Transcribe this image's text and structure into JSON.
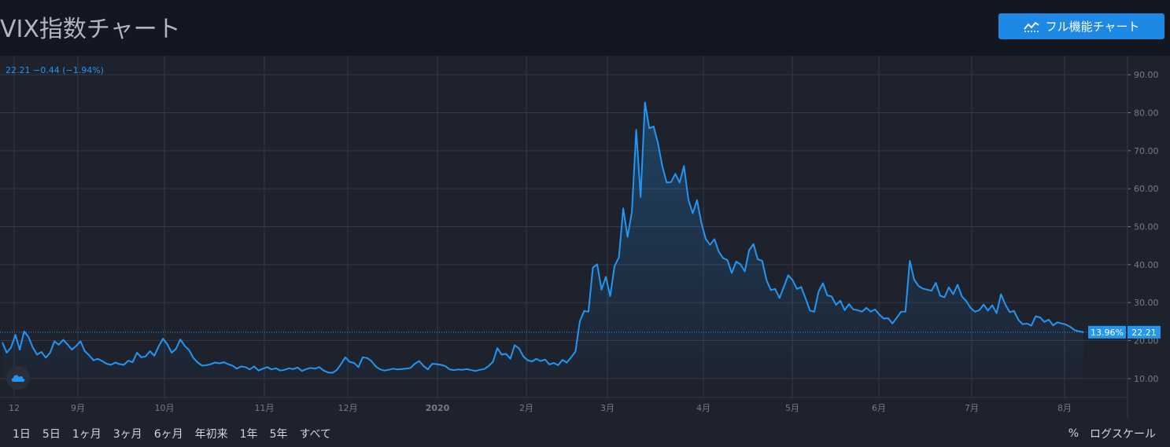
{
  "header": {
    "title": "VIX指数チャート",
    "full_chart_label": "フル機能チャート"
  },
  "legend": {
    "value": "22.21",
    "change": "−0.44",
    "change_pct": "(−1.94%)"
  },
  "price_tags": {
    "percent": "13.96%",
    "last": "22.21"
  },
  "range_buttons": [
    "1日",
    "5日",
    "1ヶ月",
    "3ヶ月",
    "6ヶ月",
    "年初来",
    "1年",
    "5年",
    "すべて"
  ],
  "scale_buttons": {
    "percent": "%",
    "log": "ログスケール"
  },
  "colors": {
    "line": "#2196f3",
    "background": "#1e222d",
    "page": "#131722",
    "grid": "#363a45",
    "axis_text": "#787b86",
    "button": "#1e88e5"
  },
  "chart_data": {
    "type": "area",
    "ylim": [
      5,
      95
    ],
    "yticks": [
      "10.00",
      "20.00",
      "30.00",
      "40.00",
      "50.00",
      "60.00",
      "70.00",
      "80.00",
      "90.00"
    ],
    "ytick_values": [
      10,
      20,
      30,
      40,
      50,
      60,
      70,
      80,
      90
    ],
    "xticks": [
      "12",
      "9月",
      "10月",
      "11月",
      "12月",
      "2020",
      "2月",
      "3月",
      "4月",
      "5月",
      "6月",
      "7月",
      "8月"
    ],
    "grid": true,
    "last_value": 22.21,
    "series": [
      {
        "values": [
          19.5,
          16.8,
          18.2,
          21.5,
          17.6,
          22.4,
          21.0,
          18.2,
          16.3,
          17.0,
          15.5,
          16.8,
          19.8,
          18.9,
          20.2,
          19.0,
          17.6,
          18.6,
          19.8,
          17.2,
          16.1,
          14.8,
          15.2,
          14.6,
          13.9,
          13.6,
          14.2,
          13.8,
          13.6,
          14.7,
          14.3,
          16.8,
          15.6,
          15.8,
          17.2,
          16.0,
          18.5,
          20.5,
          19.0,
          16.8,
          17.8,
          20.3,
          18.6,
          17.5,
          15.4,
          14.2,
          13.4,
          13.5,
          13.8,
          14.2,
          14.0,
          14.3,
          13.8,
          13.4,
          12.6,
          13.2,
          13.0,
          12.4,
          13.2,
          12.1,
          12.6,
          13.0,
          12.4,
          12.7,
          12.1,
          12.3,
          12.7,
          12.5,
          12.9,
          12.0,
          12.5,
          12.8,
          12.6,
          13.0,
          12.1,
          11.6,
          11.5,
          12.2,
          13.8,
          15.6,
          14.4,
          14.1,
          13.0,
          15.6,
          15.4,
          14.6,
          13.2,
          12.4,
          12.1,
          12.3,
          12.6,
          12.4,
          12.5,
          12.6,
          12.8,
          13.9,
          14.6,
          13.3,
          12.4,
          13.9,
          13.8,
          13.6,
          13.3,
          12.4,
          12.2,
          12.4,
          12.3,
          12.5,
          12.2,
          12.0,
          12.3,
          12.5,
          13.3,
          14.4,
          18.0,
          16.3,
          16.5,
          15.2,
          18.8,
          17.9,
          15.8,
          14.8,
          14.5,
          15.2,
          14.6,
          15.0,
          13.7,
          14.1,
          13.5,
          14.9,
          14.2,
          15.6,
          17.1,
          25.0,
          27.8,
          27.6,
          39.2,
          40.1,
          33.4,
          36.8,
          31.7,
          39.6,
          41.9,
          54.8,
          47.3,
          53.9,
          75.5,
          57.8,
          82.7,
          75.9,
          76.4,
          72.0,
          66.0,
          61.6,
          61.7,
          63.9,
          61.6,
          66.0,
          57.1,
          53.5,
          57.0,
          51.0,
          46.8,
          45.2,
          46.7,
          43.4,
          41.7,
          41.2,
          37.8,
          40.8,
          40.1,
          38.2,
          43.8,
          45.4,
          41.4,
          41.0,
          35.9,
          33.3,
          33.6,
          31.2,
          34.2,
          37.2,
          35.9,
          33.6,
          34.1,
          31.1,
          27.9,
          27.6,
          32.9,
          35.1,
          31.9,
          31.6,
          29.4,
          30.5,
          28.0,
          29.6,
          28.2,
          28.0,
          27.6,
          28.6,
          27.6,
          28.2,
          26.8,
          25.8,
          25.9,
          24.5,
          26.0,
          27.6,
          27.6,
          41.0,
          36.1,
          34.4,
          33.7,
          33.4,
          33.1,
          35.2,
          31.8,
          31.4,
          34.0,
          32.2,
          34.7,
          31.6,
          30.4,
          28.6,
          27.6,
          28.0,
          29.5,
          27.9,
          29.3,
          27.2,
          32.2,
          29.5,
          27.5,
          27.8,
          25.5,
          24.3,
          24.5,
          23.9,
          26.4,
          26.1,
          24.9,
          25.5,
          24.0,
          24.8,
          24.5,
          24.2,
          23.6,
          22.7,
          22.4,
          22.2
        ]
      }
    ]
  }
}
